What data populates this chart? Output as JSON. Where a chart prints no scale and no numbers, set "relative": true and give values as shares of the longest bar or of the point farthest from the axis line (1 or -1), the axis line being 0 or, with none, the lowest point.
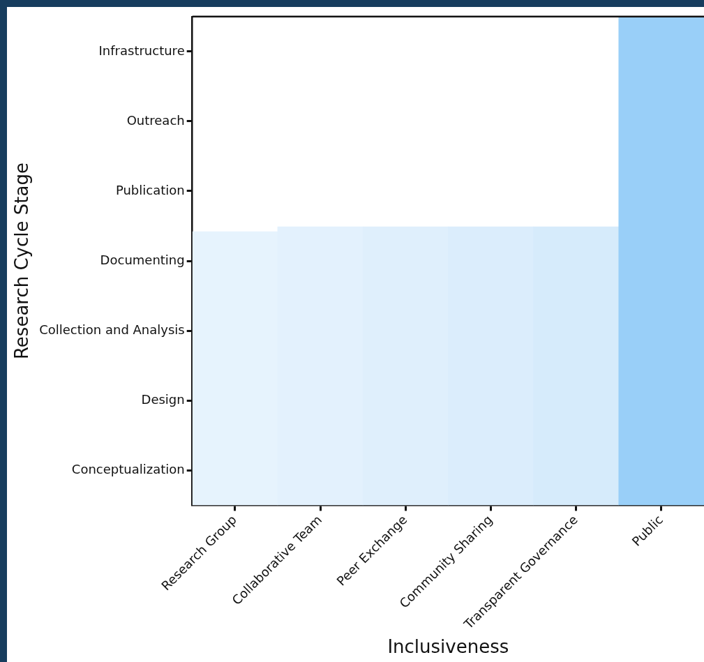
{
  "chart_data": {
    "type": "bar",
    "relative": true,
    "categories": [
      "Research Group",
      "Collaborative Team",
      "Peer Exchange",
      "Community Sharing",
      "Transparent Governance",
      "Public"
    ],
    "y_categories": [
      "Infrastructure",
      "Outreach",
      "Publication",
      "Documenting",
      "Collection and Analysis",
      "Design",
      "Conceptualization"
    ],
    "values": [
      0.56,
      0.57,
      0.57,
      0.57,
      0.57,
      1
    ],
    "colors": [
      "#e6f3fd",
      "#e3f1fd",
      "#dfeffc",
      "#dbedfc",
      "#d6ebfb",
      "#99cff8"
    ],
    "xlabel": "Inclusiveness",
    "annotations": [
      "Research Cycle Stage"
    ],
    "grid": false,
    "legend": false
  }
}
